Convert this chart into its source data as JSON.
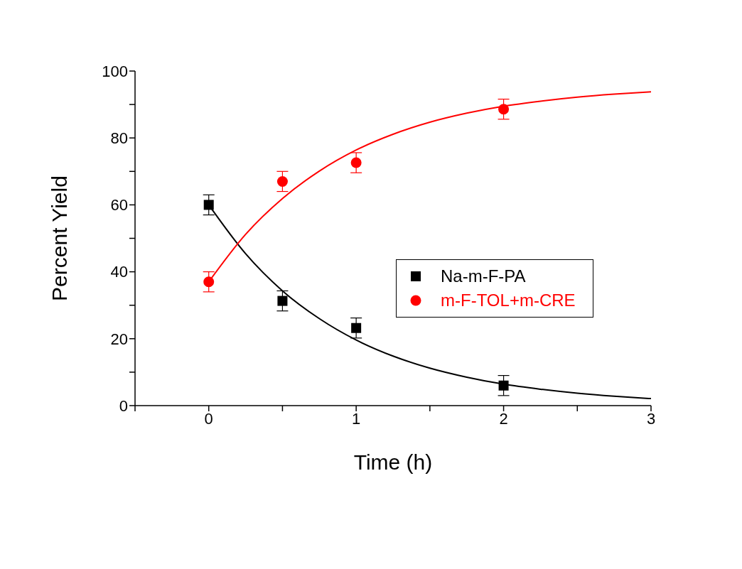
{
  "chart_data": {
    "type": "scatter",
    "xlabel": "Time (h)",
    "ylabel": "Percent Yield",
    "xlim": [
      -0.5,
      3
    ],
    "ylim": [
      0,
      100
    ],
    "xticks": [
      {
        "value": -0.5,
        "label": null
      },
      0,
      {
        "value": 0.5,
        "label": null
      },
      1,
      {
        "value": 1.5,
        "label": null
      },
      2,
      {
        "value": 2.5,
        "label": null
      },
      3
    ],
    "yticks": [
      0,
      {
        "value": 10,
        "label": null
      },
      20,
      {
        "value": 30,
        "label": null
      },
      40,
      {
        "value": 50,
        "label": null
      },
      60,
      {
        "value": 70,
        "label": null
      },
      80,
      {
        "value": 90,
        "label": null
      },
      100
    ],
    "grid": false,
    "legend": "right",
    "series": [
      {
        "name": "Na-m-F-PA",
        "marker": "square",
        "color": "#000000",
        "x": [
          0,
          0.5,
          1,
          2
        ],
        "values": [
          60,
          31.3,
          23.2,
          6
        ],
        "errors": [
          3,
          3,
          3,
          3
        ]
      },
      {
        "name": "m-F-TOL+m-CRE",
        "marker": "circle",
        "color": "#ff0000",
        "x": [
          0,
          0.5,
          1,
          2
        ],
        "values": [
          37,
          67,
          72.6,
          88.6
        ],
        "errors": [
          3,
          3,
          3,
          3
        ]
      },
      {
        "type": "line",
        "marker": "none",
        "color": "#000000",
        "x": [
          0,
          0.25,
          0.5,
          0.75,
          1,
          1.25,
          1.5,
          1.75,
          2,
          2.25,
          2.5,
          2.75,
          3
        ],
        "values": [
          60,
          45.4,
          34.3,
          26,
          19.6,
          14.8,
          11.2,
          8.5,
          6.4,
          4.9,
          3.7,
          2.8,
          2.1
        ]
      },
      {
        "type": "line",
        "marker": "none",
        "color": "#ff0000",
        "x": [
          0,
          0.25,
          0.5,
          0.75,
          1,
          1.25,
          1.5,
          1.75,
          2,
          2.25,
          2.5,
          2.75,
          3
        ],
        "values": [
          37,
          51.2,
          61.9,
          70.1,
          76.4,
          81.1,
          84.7,
          87.4,
          89.5,
          91,
          92.2,
          93.1,
          93.8
        ]
      }
    ]
  }
}
